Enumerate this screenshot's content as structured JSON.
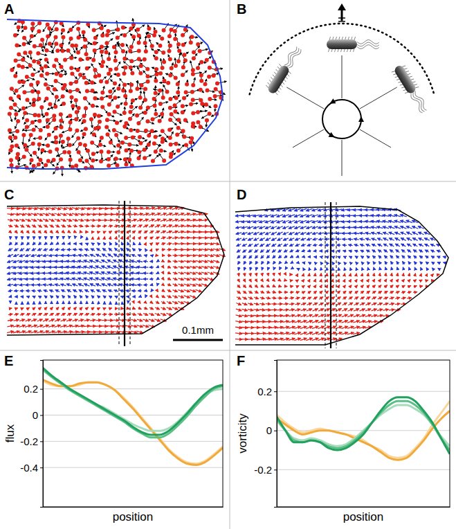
{
  "panels": [
    {
      "label": "A"
    },
    {
      "label": "B"
    },
    {
      "label": "C",
      "scale_bar": "0.1mm"
    },
    {
      "label": "D"
    }
  ],
  "chart_data": [
    {
      "type": "line",
      "panel_label": "E",
      "y_label": "flux",
      "x_label": "position",
      "x": [
        0,
        0.05,
        0.1,
        0.15,
        0.2,
        0.25,
        0.3,
        0.35,
        0.4,
        0.45,
        0.5,
        0.55,
        0.6,
        0.65,
        0.7,
        0.75,
        0.8,
        0.85,
        0.9,
        0.95,
        1
      ],
      "xlim": [
        0,
        1
      ],
      "xticks": [],
      "ylim": [
        -0.7,
        0.42
      ],
      "yticks": [
        -0.4,
        -0.2,
        0,
        0.2
      ],
      "tick_labels": "y",
      "grid": true,
      "series": [
        {
          "color": "#f8d79c",
          "values": [
            0.26,
            0.23,
            0.22,
            0.22,
            0.23,
            0.25,
            0.25,
            0.23,
            0.19,
            0.13,
            0.06,
            -0.02,
            -0.1,
            -0.18,
            -0.26,
            -0.32,
            -0.36,
            -0.37,
            -0.35,
            -0.3,
            -0.24
          ]
        },
        {
          "color": "#f2a93b",
          "values": [
            0.27,
            0.24,
            0.22,
            0.22,
            0.24,
            0.25,
            0.25,
            0.23,
            0.19,
            0.12,
            0.05,
            -0.03,
            -0.11,
            -0.19,
            -0.27,
            -0.33,
            -0.37,
            -0.38,
            -0.36,
            -0.31,
            -0.25
          ]
        },
        {
          "color": "#a6dcbc",
          "values": [
            0.34,
            0.29,
            0.24,
            0.2,
            0.16,
            0.12,
            0.08,
            0.05,
            0.01,
            -0.03,
            -0.07,
            -0.1,
            -0.12,
            -0.12,
            -0.1,
            -0.05,
            0.02,
            0.09,
            0.15,
            0.19,
            0.2
          ]
        },
        {
          "color": "#5cbf88",
          "values": [
            0.35,
            0.29,
            0.24,
            0.19,
            0.15,
            0.11,
            0.07,
            0.03,
            -0.01,
            -0.05,
            -0.1,
            -0.14,
            -0.17,
            -0.17,
            -0.14,
            -0.08,
            -0.01,
            0.07,
            0.14,
            0.2,
            0.22
          ]
        },
        {
          "color": "#22a05e",
          "values": [
            0.36,
            0.3,
            0.25,
            0.2,
            0.16,
            0.12,
            0.08,
            0.04,
            0.0,
            -0.04,
            -0.09,
            -0.13,
            -0.15,
            -0.15,
            -0.12,
            -0.06,
            0.01,
            0.09,
            0.16,
            0.21,
            0.23
          ]
        }
      ]
    },
    {
      "type": "line",
      "panel_label": "F",
      "y_label": "vorticity",
      "x_label": "position",
      "x": [
        0,
        0.05,
        0.1,
        0.15,
        0.2,
        0.25,
        0.3,
        0.35,
        0.4,
        0.45,
        0.5,
        0.55,
        0.6,
        0.65,
        0.7,
        0.75,
        0.8,
        0.85,
        0.9,
        0.95,
        1
      ],
      "xlim": [
        0,
        1
      ],
      "xticks": [],
      "ylim": [
        -0.39,
        0.36
      ],
      "yticks": [
        -0.2,
        0,
        0.2
      ],
      "tick_labels": "y",
      "grid": true,
      "series": [
        {
          "color": "#f8d79c",
          "values": [
            0.08,
            0.04,
            0.01,
            -0.01,
            0.0,
            0.01,
            0.0,
            -0.01,
            -0.02,
            -0.03,
            -0.05,
            -0.08,
            -0.1,
            -0.13,
            -0.14,
            -0.13,
            -0.09,
            -0.04,
            0.03,
            0.09,
            0.15
          ]
        },
        {
          "color": "#f2a93b",
          "values": [
            0.06,
            0.03,
            0.0,
            -0.02,
            -0.01,
            0.0,
            0.0,
            -0.01,
            -0.02,
            -0.04,
            -0.06,
            -0.08,
            -0.11,
            -0.14,
            -0.15,
            -0.14,
            -0.1,
            -0.05,
            0.01,
            0.06,
            0.1
          ]
        },
        {
          "color": "#a6dcbc",
          "values": [
            0.05,
            0.0,
            -0.04,
            -0.05,
            -0.04,
            -0.05,
            -0.07,
            -0.08,
            -0.07,
            -0.04,
            0.0,
            0.04,
            0.08,
            0.11,
            0.13,
            0.13,
            0.11,
            0.08,
            0.03,
            -0.03,
            -0.08
          ]
        },
        {
          "color": "#5cbf88",
          "values": [
            0.06,
            0.0,
            -0.05,
            -0.06,
            -0.05,
            -0.06,
            -0.08,
            -0.09,
            -0.08,
            -0.05,
            -0.01,
            0.04,
            0.09,
            0.13,
            0.15,
            0.15,
            0.13,
            0.09,
            0.03,
            -0.04,
            -0.1
          ]
        },
        {
          "color": "#22a05e",
          "values": [
            0.07,
            0.0,
            -0.06,
            -0.06,
            -0.05,
            -0.06,
            -0.09,
            -0.1,
            -0.09,
            -0.06,
            -0.02,
            0.04,
            0.1,
            0.15,
            0.17,
            0.17,
            0.15,
            0.1,
            0.04,
            -0.04,
            -0.12
          ]
        }
      ]
    }
  ]
}
